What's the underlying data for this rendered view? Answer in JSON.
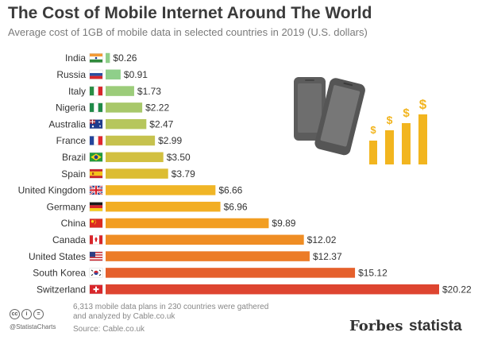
{
  "title": "The Cost of Mobile Internet Around The World",
  "subtitle": "Average cost of 1GB of mobile data in selected countries in 2019 (U.S. dollars)",
  "chart_data": {
    "type": "bar",
    "orientation": "horizontal",
    "categories": [
      "India",
      "Russia",
      "Italy",
      "Nigeria",
      "Australia",
      "France",
      "Brazil",
      "Spain",
      "United Kingdom",
      "Germany",
      "China",
      "Canada",
      "United States",
      "South Korea",
      "Switzerland"
    ],
    "values": [
      0.26,
      0.91,
      1.73,
      2.22,
      2.47,
      2.99,
      3.5,
      3.79,
      6.66,
      6.96,
      9.89,
      12.02,
      12.37,
      15.12,
      20.22
    ],
    "value_labels": [
      "$0.26",
      "$0.91",
      "$1.73",
      "$2.22",
      "$2.47",
      "$2.99",
      "$3.50",
      "$3.79",
      "$6.66",
      "$6.96",
      "$9.89",
      "$12.02",
      "$12.37",
      "$15.12",
      "$20.22"
    ],
    "bar_colors": [
      "#8fcf8a",
      "#8fcf8a",
      "#9ccc7a",
      "#a8c86a",
      "#b6c65c",
      "#c6c24e",
      "#d2c040",
      "#dcbd32",
      "#f0b526",
      "#f2ae23",
      "#f29e22",
      "#ef8d24",
      "#ec7c28",
      "#e5602c",
      "#de4530"
    ],
    "xlim": [
      0,
      20.22
    ],
    "grid": false,
    "legend": "none",
    "title": "The Cost of Mobile Internet Around The World",
    "xlabel": "",
    "ylabel": ""
  },
  "flags": [
    "india-flag-icon",
    "russia-flag-icon",
    "italy-flag-icon",
    "nigeria-flag-icon",
    "australia-flag-icon",
    "france-flag-icon",
    "brazil-flag-icon",
    "spain-flag-icon",
    "uk-flag-icon",
    "germany-flag-icon",
    "china-flag-icon",
    "canada-flag-icon",
    "usa-flag-icon",
    "south-korea-flag-icon",
    "switzerland-flag-icon"
  ],
  "illustration": {
    "icons": [
      "phone-icon",
      "phone-icon",
      "dollar-bars-icon"
    ],
    "dollar_sign": "$"
  },
  "footer": {
    "note": "6,313 mobile data plans in 230 countries were gathered and analyzed by Cable.co.uk",
    "source": "Source: Cable.co.uk",
    "handle": "@StatistaCharts",
    "cc_icons": [
      "cc",
      "i",
      "="
    ],
    "brand_forbes": "Forbes",
    "brand_statista": "statista"
  }
}
